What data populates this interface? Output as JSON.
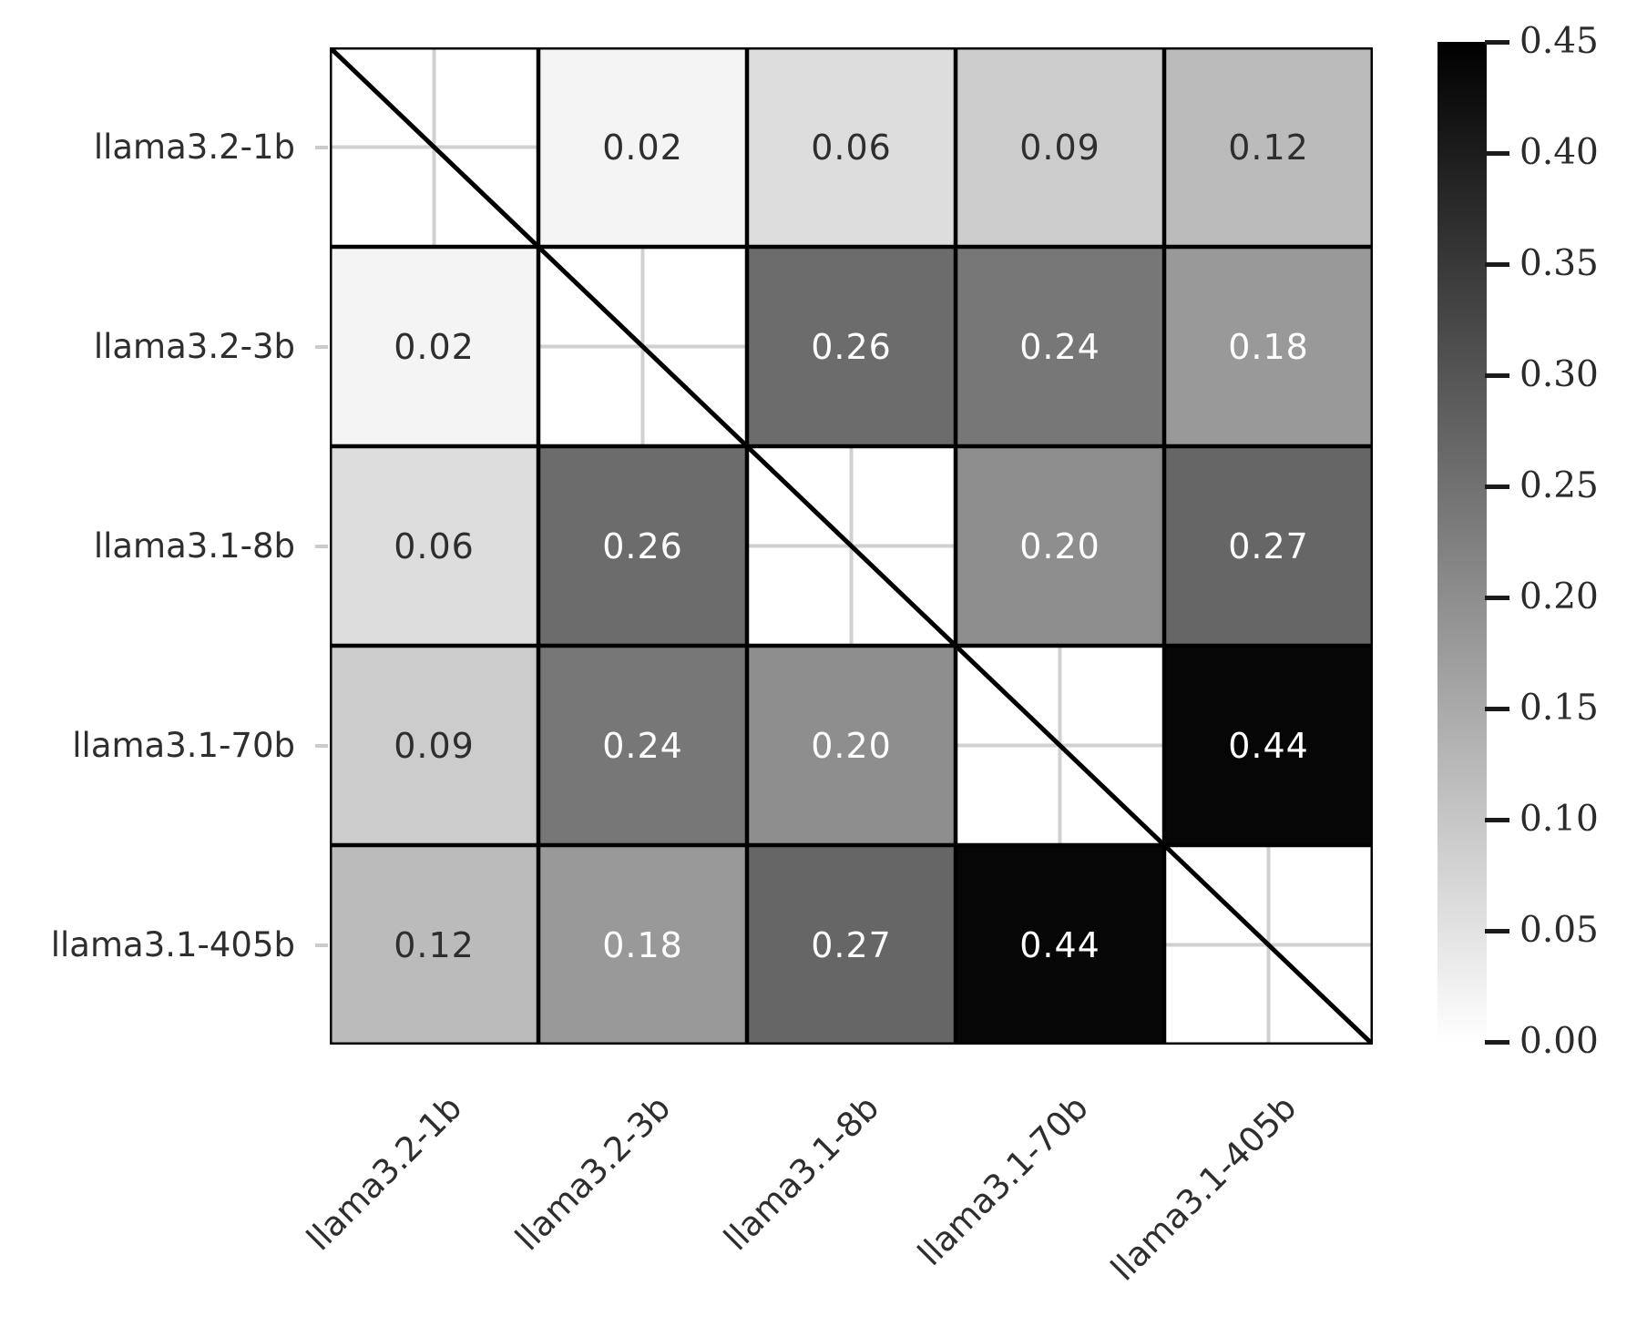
{
  "chart_data": {
    "type": "heatmap",
    "title": "",
    "xlabel": "",
    "ylabel": "",
    "categories": [
      "llama3.2-1b",
      "llama3.2-3b",
      "llama3.1-8b",
      "llama3.1-70b",
      "llama3.1-405b"
    ],
    "x_tick_labels": [
      "llama3.2-1b",
      "llama3.2-3b",
      "llama3.1-8b",
      "llama3.1-70b",
      "llama3.1-405b"
    ],
    "y_tick_labels": [
      "llama3.2-1b",
      "llama3.2-3b",
      "llama3.1-8b",
      "llama3.1-70b",
      "llama3.1-405b"
    ],
    "matrix": [
      [
        null,
        0.02,
        0.06,
        0.09,
        0.12
      ],
      [
        0.02,
        null,
        0.26,
        0.24,
        0.18
      ],
      [
        0.06,
        0.26,
        null,
        0.2,
        0.27
      ],
      [
        0.09,
        0.24,
        0.2,
        null,
        0.44
      ],
      [
        0.12,
        0.18,
        0.27,
        0.44,
        null
      ]
    ],
    "value_format_decimals": 2,
    "vmin": 0.0,
    "vmax": 0.45,
    "colormap": "white-to-black linear grayscale",
    "diagonal_masked": true,
    "diagonal_line": true,
    "grid_on": true,
    "legend_position": "colorbar-right",
    "colorbar": {
      "tick_labels": [
        "0.45",
        "0.40",
        "0.35",
        "0.30",
        "0.25",
        "0.20",
        "0.15",
        "0.10",
        "0.05",
        "0.00"
      ],
      "top_value": 0.45,
      "bottom_value": 0.0
    },
    "colors": {
      "cell_border": "#000000",
      "diagonal_line": "#000000",
      "masked_cell_bg": "#ffffff",
      "masked_cell_gridline": "#d0d0d0",
      "annotation_dark": "#2e2e2e",
      "annotation_light": "#ffffff",
      "tick_label": "#2b2b2b",
      "axis_tick_mark": "#cbcbcb"
    }
  }
}
